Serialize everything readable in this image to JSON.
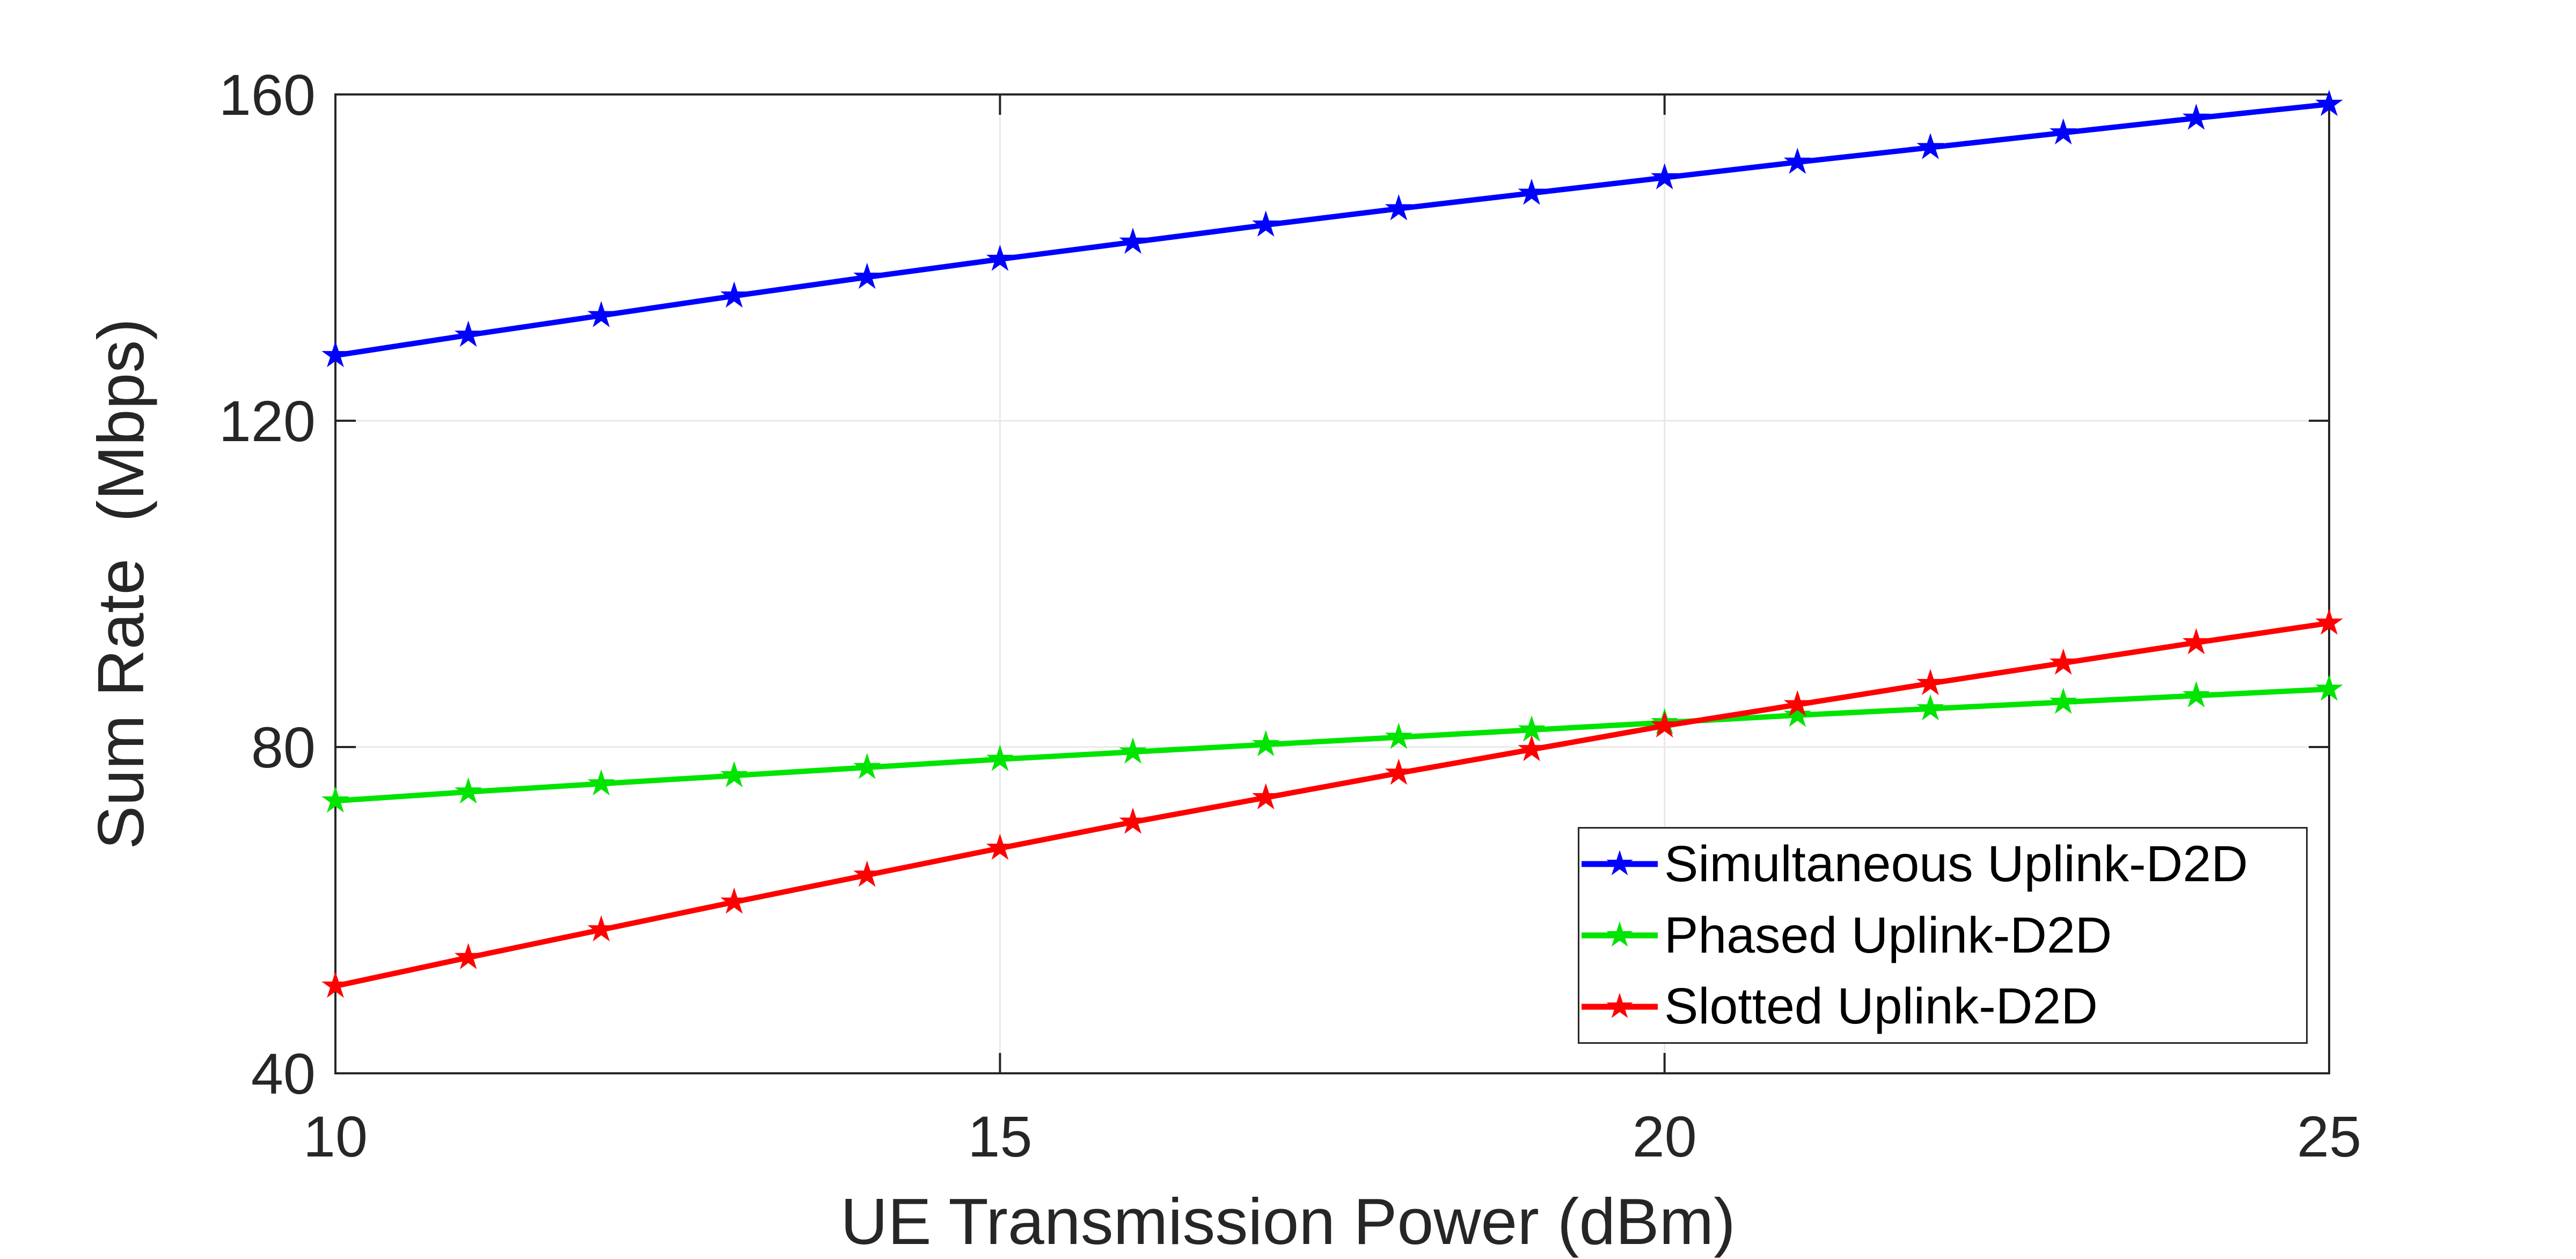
{
  "figure": {
    "background": "#FFFFFF"
  },
  "chart_data": {
    "type": "line",
    "title": "",
    "xlabel": "UE Transmission Power (dBm)",
    "ylabel": "Sum Rate  (Mbps)",
    "x": [
      10,
      11,
      12,
      13,
      14,
      15,
      16,
      17,
      18,
      19,
      20,
      21,
      22,
      23,
      24,
      25
    ],
    "series": [
      {
        "name": "Simultaneous Uplink-D2D",
        "color": "#0000FF",
        "marker": "pentagram",
        "values": [
          128.0,
          130.5,
          132.9,
          135.3,
          137.6,
          139.8,
          141.9,
          144.0,
          146.0,
          147.9,
          149.8,
          151.7,
          153.5,
          155.3,
          157.1,
          158.8
        ]
      },
      {
        "name": "Phased Uplink-D2D",
        "color": "#00E400",
        "marker": "pentagram",
        "values": [
          73.4,
          74.5,
          75.5,
          76.5,
          77.5,
          78.5,
          79.4,
          80.3,
          81.2,
          82.1,
          83.0,
          83.9,
          84.7,
          85.5,
          86.3,
          87.1
        ]
      },
      {
        "name": "Slotted Uplink-D2D",
        "color": "#FF0000",
        "marker": "pentagram",
        "values": [
          50.7,
          54.2,
          57.6,
          61.0,
          64.3,
          67.6,
          70.8,
          73.8,
          76.8,
          79.7,
          82.6,
          85.2,
          87.8,
          90.3,
          92.8,
          95.2
        ]
      }
    ],
    "xlim": [
      10,
      25
    ],
    "ylim": [
      40,
      160
    ],
    "xticks": [
      10,
      15,
      20,
      25
    ],
    "yticks": [
      40,
      80,
      120,
      160
    ],
    "grid": true,
    "legend_position": "inside lower right",
    "axis_color": "#262626",
    "grid_color": "#E8E8E8",
    "background": "#FFFFFF"
  }
}
